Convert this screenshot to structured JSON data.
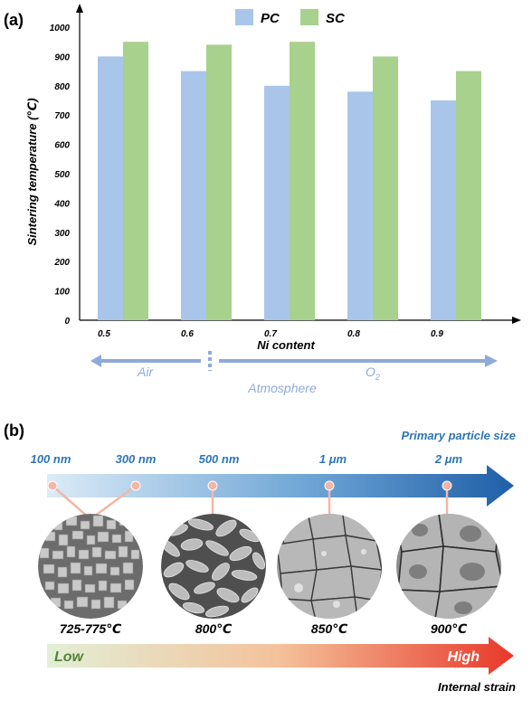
{
  "panel_a": {
    "label": "(a)",
    "chart_data": {
      "type": "bar",
      "categories": [
        "0.5",
        "0.6",
        "0.7",
        "0.8",
        "0.9"
      ],
      "series": [
        {
          "name": "PC",
          "values": [
            900,
            850,
            800,
            780,
            750
          ]
        },
        {
          "name": "SC",
          "values": [
            950,
            940,
            950,
            900,
            850
          ]
        }
      ],
      "xlabel": "Ni content",
      "ylabel": "Sintering temperature (℃)",
      "ylim": [
        0,
        1000
      ],
      "yticks": [
        "0",
        "100",
        "200",
        "300",
        "400",
        "500",
        "600",
        "700",
        "800",
        "900",
        "1000"
      ],
      "legend_placement": "top-center",
      "grid": false,
      "colors": {
        "PC": "#a9c6ea",
        "SC": "#a8d18d"
      }
    },
    "atmosphere": {
      "air_label": "Air",
      "o2_label": "O",
      "o2_subscript": "2",
      "caption": "Atmosphere",
      "color": "#8eaadb"
    }
  },
  "panel_b": {
    "label": "(b)",
    "size_axis_title": "Primary particle size",
    "sizes": [
      "100 nm",
      "300 nm",
      "500 nm",
      "1 μm",
      "2 μm"
    ],
    "temperatures": [
      "725-775℃",
      "800℃",
      "850℃",
      "900℃"
    ],
    "strain_low": "Low",
    "strain_high": "High",
    "strain_title": "Internal strain",
    "colors": {
      "size_arrow_start": "#dcebf7",
      "size_arrow_end": "#1f5fa8",
      "size_text": "#2e75b6",
      "strain_start": "#e2efd6",
      "strain_end": "#e8382a",
      "low_text": "#548235",
      "connector": "#f4b6a6"
    }
  }
}
